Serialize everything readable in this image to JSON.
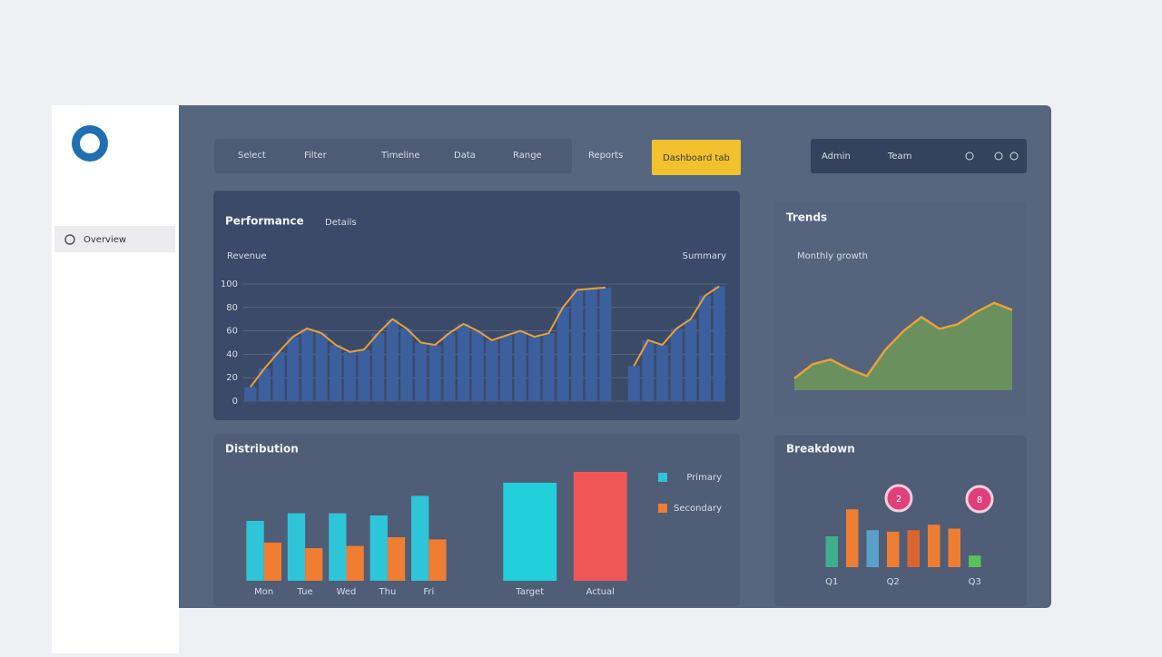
{
  "sidebar": {
    "nav_item": "Overview"
  },
  "toolbar": {
    "items": [
      "Select",
      "Filter",
      "Timeline",
      "Data",
      "Range",
      "Reports"
    ],
    "primary": "Dashboard tab",
    "account": "Admin",
    "team": "Team"
  },
  "panels": [
    {
      "title": "Performance",
      "tag": "Details",
      "subtitle": "Revenue",
      "legend": "Summary",
      "chart": {
        "type": "bar-line",
        "bar_color": "#3c5f9e",
        "line_color": "#e8a13a",
        "ylim": [
          0,
          100
        ],
        "yticks": [
          0,
          20,
          40,
          60,
          80,
          100
        ],
        "values": [
          12,
          28,
          42,
          55,
          62,
          58,
          48,
          42,
          44,
          58,
          70,
          62,
          50,
          48,
          58,
          66,
          60,
          52,
          56,
          60,
          55,
          58,
          80,
          95,
          96,
          97,
          null,
          30,
          52,
          48,
          62,
          70,
          90,
          98
        ]
      }
    },
    {
      "title": "Trends",
      "subtitle": "Monthly growth",
      "chart": {
        "type": "area",
        "line_color": "#e8a13a",
        "fill_color": "#6f9b55",
        "ylim": [
          0,
          100
        ],
        "values": [
          10,
          22,
          26,
          18,
          12,
          34,
          50,
          62,
          52,
          56,
          66,
          74,
          68
        ]
      }
    },
    {
      "title": "Distribution",
      "chart": {
        "type": "grouped-bar",
        "ylim": [
          0,
          100
        ],
        "categories": [
          "Mon",
          "Tue",
          "Wed",
          "Thu",
          "Fri"
        ],
        "series": [
          {
            "name": "Primary",
            "color": "#2ec5d8",
            "values": [
              55,
              62,
              62,
              60,
              78
            ]
          },
          {
            "name": "Secondary",
            "color": "#ef7d32",
            "values": [
              35,
              30,
              32,
              40,
              38
            ]
          }
        ]
      },
      "totals": {
        "type": "bar",
        "ylim": [
          0,
          100
        ],
        "categories": [
          "Target",
          "Actual"
        ],
        "values": [
          90,
          100
        ],
        "colors": [
          "#22d0dc",
          "#f05656"
        ]
      }
    },
    {
      "title": "Breakdown",
      "badges": [
        "2",
        "8"
      ],
      "chart": {
        "type": "bar",
        "ylim": [
          0,
          100
        ],
        "categories": [
          "Q1",
          null,
          null,
          "Q2",
          null,
          null,
          null,
          "Q3"
        ],
        "values": [
          40,
          75,
          48,
          46,
          48,
          55,
          50,
          15
        ],
        "colors": [
          "#3fae8c",
          "#ef7d32",
          "#5aa0c8",
          "#ef7d32",
          "#d9662f",
          "#ef7d32",
          "#ef7d32",
          "#59c25a"
        ]
      }
    }
  ]
}
